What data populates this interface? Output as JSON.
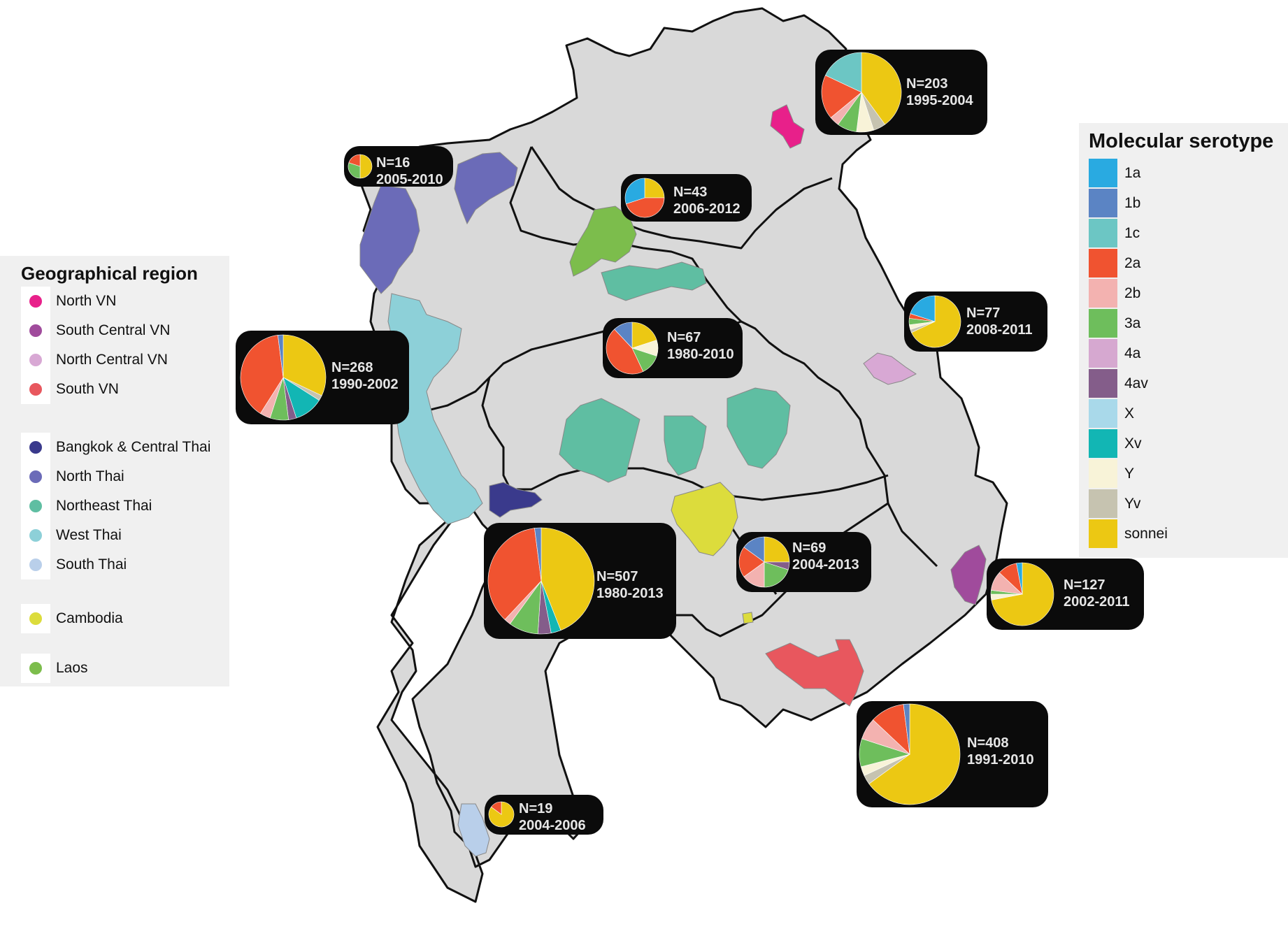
{
  "colors": {
    "land": "#d9d9d9",
    "border": "#111111",
    "water": "#ffffff"
  },
  "geo_legend": {
    "title": "Geographical region",
    "items": [
      {
        "label": "North VN",
        "color": "#e8208a"
      },
      {
        "label": "South Central VN",
        "color": "#a04b9c"
      },
      {
        "label": "North Central VN",
        "color": "#d8a8d4"
      },
      {
        "label": "South VN",
        "color": "#e8575e"
      },
      {
        "label": "Bangkok & Central Thai",
        "color": "#3a3a8c"
      },
      {
        "label": "North Thai",
        "color": "#6b6bb8"
      },
      {
        "label": "Northeast Thai",
        "color": "#5fbea2"
      },
      {
        "label": "West Thai",
        "color": "#8dd0d8"
      },
      {
        "label": "South Thai",
        "color": "#b9cfea"
      },
      {
        "label": "Cambodia",
        "color": "#dcdc3c"
      },
      {
        "label": "Laos",
        "color": "#7cbd4c"
      }
    ]
  },
  "serotype_legend": {
    "title": "Molecular serotype",
    "items": [
      {
        "label": "1a",
        "color": "#29aae1"
      },
      {
        "label": "1b",
        "color": "#5b84c4"
      },
      {
        "label": "1c",
        "color": "#6cc6c4"
      },
      {
        "label": "2a",
        "color": "#f05330"
      },
      {
        "label": "2b",
        "color": "#f3b2b0"
      },
      {
        "label": "3a",
        "color": "#6ebe5c"
      },
      {
        "label": "4a",
        "color": "#d6a8d0"
      },
      {
        "label": "4av",
        "color": "#845d8a"
      },
      {
        "label": "X",
        "color": "#a9d9ea"
      },
      {
        "label": "Xv",
        "color": "#12b6b4"
      },
      {
        "label": "Y",
        "color": "#f8f3d8"
      },
      {
        "label": "Yv",
        "color": "#c6c3b0"
      },
      {
        "label": "sonnei",
        "color": "#ecc813"
      }
    ]
  },
  "sites": [
    {
      "n": "N=203",
      "years": "1995-2004",
      "slices": [
        [
          "sonnei",
          40
        ],
        [
          "Yv",
          5
        ],
        [
          "Y",
          7
        ],
        [
          "3a",
          8
        ],
        [
          "2b",
          4
        ],
        [
          "2a",
          18
        ],
        [
          "1c",
          18
        ]
      ]
    },
    {
      "n": "N=16",
      "years": "2005-2010",
      "slices": [
        [
          "sonnei",
          50
        ],
        [
          "3a",
          30
        ],
        [
          "2a",
          20
        ]
      ]
    },
    {
      "n": "N=43",
      "years": "2006-2012",
      "slices": [
        [
          "sonnei",
          25
        ],
        [
          "2a",
          45
        ],
        [
          "1a",
          30
        ]
      ]
    },
    {
      "n": "N=77",
      "years": "2008-2011",
      "slices": [
        [
          "sonnei",
          68
        ],
        [
          "Yv",
          2
        ],
        [
          "Y",
          3
        ],
        [
          "3a",
          4
        ],
        [
          "2a",
          3
        ],
        [
          "1a",
          20
        ]
      ]
    },
    {
      "n": "N=268",
      "years": "1990-2002",
      "slices": [
        [
          "sonnei",
          32
        ],
        [
          "Yv",
          2
        ],
        [
          "Xv",
          11
        ],
        [
          "4av",
          3
        ],
        [
          "3a",
          7
        ],
        [
          "2b",
          4
        ],
        [
          "2a",
          39
        ],
        [
          "1b",
          2
        ]
      ]
    },
    {
      "n": "N=67",
      "years": "1980-2010",
      "slices": [
        [
          "sonnei",
          20
        ],
        [
          "Y",
          10
        ],
        [
          "3a",
          13
        ],
        [
          "2a",
          45
        ],
        [
          "1b",
          12
        ]
      ]
    },
    {
      "n": "N=507",
      "years": "1980-2013",
      "slices": [
        [
          "sonnei",
          44
        ],
        [
          "Xv",
          3
        ],
        [
          "4av",
          4
        ],
        [
          "3a",
          9
        ],
        [
          "2b",
          2
        ],
        [
          "2a",
          36
        ],
        [
          "1b",
          2
        ]
      ]
    },
    {
      "n": "N=69",
      "years": "2004-2013",
      "slices": [
        [
          "sonnei",
          25
        ],
        [
          "4av",
          5
        ],
        [
          "3a",
          20
        ],
        [
          "2b",
          15
        ],
        [
          "2a",
          20
        ],
        [
          "1b",
          15
        ]
      ]
    },
    {
      "n": "N=127",
      "years": "2002-2011",
      "slices": [
        [
          "sonnei",
          72
        ],
        [
          "Y",
          3
        ],
        [
          "3a",
          2
        ],
        [
          "2b",
          10
        ],
        [
          "2a",
          10
        ],
        [
          "1a",
          3
        ]
      ]
    },
    {
      "n": "N=408",
      "years": "1991-2010",
      "slices": [
        [
          "sonnei",
          65
        ],
        [
          "Yv",
          3
        ],
        [
          "Y",
          3
        ],
        [
          "3a",
          9
        ],
        [
          "2b",
          7
        ],
        [
          "2a",
          11
        ],
        [
          "1b",
          2
        ]
      ]
    },
    {
      "n": "N=19",
      "years": "2004-2006",
      "slices": [
        [
          "sonnei",
          85
        ],
        [
          "2a",
          15
        ]
      ]
    }
  ]
}
